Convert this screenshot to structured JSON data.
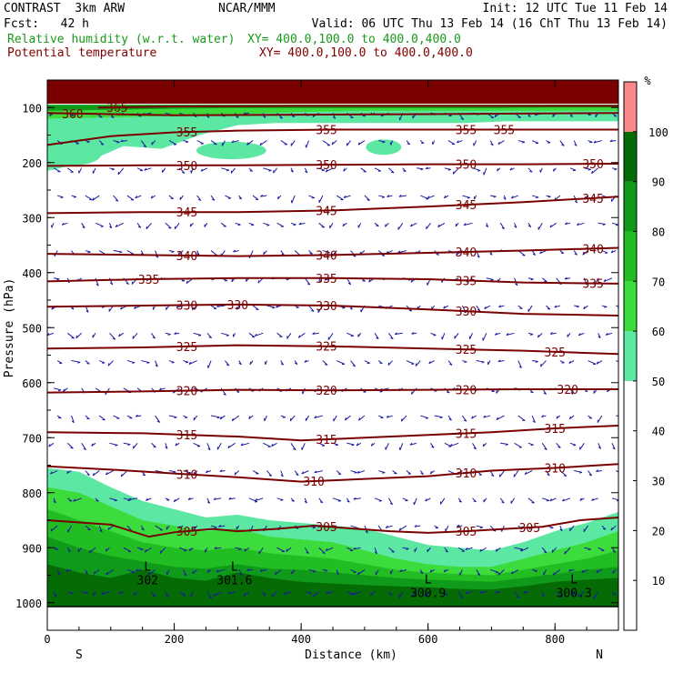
{
  "header": {
    "left_line1": "CONTRAST  3km ARW",
    "center_line1": "NCAR/MMM",
    "right_line1": "Init: 12 UTC Tue 11 Feb 14",
    "left_line2": "Fcst:   42 h",
    "right_line2": "Valid: 06 UTC Thu 13 Feb 14 (16 ChT Thu 13 Feb 14)",
    "field1_name": "Relative humidity (w.r.t. water)",
    "field1_xy": "XY= 400.0,100.0 to 400.0,400.0",
    "field2_name": "Potential temperature",
    "field2_xy": "XY= 400.0,100.0 to 400.0,400.0"
  },
  "colors": {
    "rh_fill": [
      "#ffffff",
      "#ffffff",
      "#ffffff",
      "#ffffff",
      "#ffffff",
      "#5ce8a2",
      "#3cdc3c",
      "#22bd22",
      "#0f9a1a",
      "#056b05",
      "#f88888"
    ],
    "theta_line": "#7a0000",
    "wind_arrow": "#1a1aa0",
    "top_band": "#7a0000"
  },
  "chart_data": {
    "type": "contour_cross_section",
    "xlabel": "Distance (km)",
    "ylabel": "Pressure (hPa)",
    "xlim": [
      0,
      900
    ],
    "ylim": [
      1050,
      50
    ],
    "x_ticks": [
      "0",
      "200",
      "400",
      "600",
      "800"
    ],
    "x_tick_values": [
      0,
      200,
      400,
      600,
      800
    ],
    "y_ticks": [
      "100",
      "200",
      "300",
      "400",
      "500",
      "600",
      "700",
      "800",
      "900",
      "1000"
    ],
    "y_tick_values": [
      100,
      200,
      300,
      400,
      500,
      600,
      700,
      800,
      900,
      1000
    ],
    "x_end_labels": {
      "left": "S",
      "right": "N"
    },
    "colorbar": {
      "unit": "%",
      "ticks": [
        "10",
        "20",
        "30",
        "40",
        "50",
        "60",
        "70",
        "80",
        "90",
        "100"
      ],
      "tick_values": [
        10,
        20,
        30,
        40,
        50,
        60,
        70,
        80,
        90,
        100
      ],
      "range": [
        0,
        110
      ]
    },
    "theta_contours": [
      {
        "level": "305",
        "x": [
          0,
          100,
          160,
          200,
          260,
          300,
          360,
          420,
          480,
          540,
          600,
          660,
          720,
          780,
          840,
          900
        ],
        "p": [
          850,
          858,
          880,
          872,
          866,
          870,
          866,
          860,
          865,
          870,
          873,
          870,
          866,
          862,
          850,
          845
        ],
        "labels": [
          [
            220,
            "305"
          ],
          [
            440,
            "305"
          ],
          [
            660,
            "305"
          ],
          [
            760,
            "305"
          ]
        ]
      },
      {
        "level": "310",
        "x": [
          0,
          100,
          200,
          300,
          400,
          500,
          600,
          700,
          800,
          900
        ],
        "p": [
          752,
          758,
          765,
          772,
          780,
          775,
          770,
          760,
          755,
          748
        ],
        "labels": [
          [
            220,
            "310"
          ],
          [
            420,
            "310"
          ],
          [
            660,
            "310"
          ],
          [
            800,
            "310"
          ]
        ]
      },
      {
        "level": "315",
        "x": [
          0,
          150,
          300,
          400,
          500,
          600,
          700,
          800,
          900
        ],
        "p": [
          690,
          692,
          698,
          705,
          700,
          695,
          690,
          683,
          678
        ],
        "labels": [
          [
            220,
            "315"
          ],
          [
            440,
            "315"
          ],
          [
            660,
            "315"
          ],
          [
            800,
            "315"
          ]
        ]
      },
      {
        "level": "320",
        "x": [
          0,
          150,
          300,
          450,
          600,
          750,
          900
        ],
        "p": [
          618,
          616,
          613,
          614,
          613,
          612,
          612
        ],
        "labels": [
          [
            220,
            "320"
          ],
          [
            440,
            "320"
          ],
          [
            660,
            "320"
          ],
          [
            820,
            "320"
          ]
        ]
      },
      {
        "level": "325",
        "x": [
          0,
          150,
          300,
          450,
          600,
          750,
          900
        ],
        "p": [
          538,
          536,
          532,
          534,
          538,
          542,
          548
        ],
        "labels": [
          [
            220,
            "325"
          ],
          [
            440,
            "325"
          ],
          [
            660,
            "325"
          ],
          [
            800,
            "325"
          ]
        ]
      },
      {
        "level": "330",
        "x": [
          0,
          150,
          300,
          450,
          600,
          750,
          900
        ],
        "p": [
          462,
          460,
          458,
          460,
          467,
          475,
          478
        ],
        "labels": [
          [
            220,
            "330"
          ],
          [
            300,
            "330"
          ],
          [
            440,
            "330"
          ],
          [
            660,
            "330"
          ]
        ]
      },
      {
        "level": "335",
        "x": [
          0,
          150,
          300,
          450,
          600,
          750,
          900
        ],
        "p": [
          416,
          412,
          410,
          410,
          412,
          418,
          420
        ],
        "labels": [
          [
            160,
            "335"
          ],
          [
            440,
            "335"
          ],
          [
            660,
            "335"
          ],
          [
            860,
            "335"
          ]
        ]
      },
      {
        "level": "340",
        "x": [
          0,
          150,
          300,
          450,
          600,
          750,
          900
        ],
        "p": [
          366,
          368,
          370,
          368,
          364,
          360,
          355
        ],
        "labels": [
          [
            220,
            "340"
          ],
          [
            440,
            "340"
          ],
          [
            660,
            "340"
          ],
          [
            860,
            "340"
          ]
        ]
      },
      {
        "level": "345",
        "x": [
          0,
          150,
          300,
          450,
          600,
          750,
          900
        ],
        "p": [
          292,
          290,
          290,
          287,
          280,
          272,
          262
        ],
        "labels": [
          [
            220,
            "345"
          ],
          [
            440,
            "345"
          ],
          [
            660,
            "345"
          ],
          [
            860,
            "345"
          ]
        ]
      },
      {
        "level": "350",
        "x": [
          0,
          150,
          300,
          450,
          600,
          750,
          900
        ],
        "p": [
          206,
          205,
          205,
          204,
          203,
          203,
          202
        ],
        "labels": [
          [
            220,
            "350"
          ],
          [
            440,
            "350"
          ],
          [
            660,
            "350"
          ],
          [
            860,
            "350"
          ]
        ]
      },
      {
        "level": "355",
        "x": [
          0,
          100,
          200,
          300,
          450,
          600,
          750,
          900
        ],
        "p": [
          168,
          152,
          145,
          142,
          140,
          140,
          140,
          140
        ],
        "labels": [
          [
            220,
            "355"
          ],
          [
            440,
            "355"
          ],
          [
            660,
            "355"
          ],
          [
            720,
            "355"
          ]
        ]
      },
      {
        "level": "360",
        "x": [
          0,
          100,
          200,
          400,
          600,
          900
        ],
        "p": [
          110,
          112,
          114,
          113,
          112,
          110
        ],
        "labels": [
          [
            40,
            "360"
          ]
        ]
      },
      {
        "level": "365",
        "x": [
          80,
          200,
          400,
          600,
          900
        ],
        "p": [
          100,
          98,
          97,
          97,
          97
        ],
        "labels": [
          [
            110,
            "365"
          ]
        ]
      }
    ],
    "rh_regions": [
      {
        "level": 50,
        "x": [
          0,
          50,
          100,
          150,
          200,
          250,
          300,
          350,
          400,
          450,
          500,
          550,
          600,
          650,
          700,
          750,
          800,
          850,
          900
        ],
        "p": [
          755,
          762,
          790,
          815,
          830,
          845,
          840,
          850,
          855,
          860,
          865,
          880,
          895,
          900,
          905,
          890,
          870,
          855,
          835
        ]
      },
      {
        "level": 60,
        "x": [
          0,
          50,
          100,
          150,
          200,
          250,
          300,
          350,
          400,
          450,
          500,
          550,
          600,
          650,
          700,
          750,
          800,
          850,
          900
        ],
        "p": [
          790,
          800,
          825,
          850,
          860,
          870,
          865,
          880,
          885,
          890,
          905,
          920,
          930,
          935,
          935,
          920,
          905,
          890,
          870
        ]
      },
      {
        "level": 70,
        "x": [
          0,
          50,
          100,
          150,
          200,
          250,
          300,
          350,
          400,
          450,
          500,
          550,
          600,
          650,
          700,
          750,
          800,
          850,
          900
        ],
        "p": [
          830,
          850,
          870,
          890,
          900,
          905,
          900,
          910,
          915,
          920,
          930,
          940,
          945,
          948,
          950,
          940,
          930,
          920,
          905
        ]
      },
      {
        "level": 80,
        "x": [
          0,
          50,
          100,
          150,
          200,
          250,
          300,
          350,
          400,
          450,
          500,
          550,
          600,
          650,
          700,
          750,
          800,
          850,
          900
        ],
        "p": [
          880,
          900,
          915,
          925,
          935,
          938,
          930,
          938,
          940,
          945,
          950,
          955,
          958,
          960,
          962,
          955,
          948,
          940,
          935
        ]
      },
      {
        "level": 90,
        "x": [
          0,
          50,
          100,
          150,
          200,
          250,
          300,
          350,
          400,
          450,
          500,
          550,
          600,
          650,
          700,
          750,
          800,
          850,
          900
        ],
        "p": [
          930,
          945,
          955,
          940,
          955,
          960,
          945,
          955,
          962,
          965,
          968,
          970,
          972,
          975,
          976,
          970,
          962,
          958,
          955
        ]
      }
    ],
    "rh_upper_patches": [
      {
        "level": 50,
        "x": [
          0,
          60,
          120,
          180,
          240,
          300,
          360,
          420,
          480,
          540,
          600,
          660,
          720,
          780,
          840,
          900
        ],
        "p_top": [
          95,
          95,
          95,
          95,
          95,
          95,
          95,
          95,
          95,
          95,
          95,
          95,
          95,
          95,
          95,
          95
        ],
        "p_bot": [
          215,
          200,
          170,
          175,
          150,
          132,
          128,
          128,
          128,
          128,
          128,
          128,
          125,
          125,
          125,
          125
        ]
      },
      {
        "level": 60,
        "x": [
          0,
          100,
          200,
          300,
          400,
          500,
          600,
          700,
          800,
          900
        ],
        "p_top": [
          95,
          95,
          95,
          95,
          95,
          95,
          95,
          95,
          95,
          95
        ],
        "p_bot": [
          120,
          118,
          115,
          112,
          108,
          106,
          106,
          106,
          106,
          106
        ]
      },
      {
        "level": 80,
        "x": [
          0,
          100,
          200,
          300,
          400,
          500,
          600,
          700,
          800,
          900
        ],
        "p_top": [
          95,
          95,
          95,
          95,
          95,
          95,
          95,
          95,
          95,
          95
        ],
        "p_bot": [
          106,
          104,
          102,
          101,
          101,
          101,
          101,
          101,
          100,
          100
        ]
      }
    ],
    "rh_upper_blobs": [
      {
        "level": 50,
        "x": 290,
        "p": 178,
        "rx_km": 55,
        "ry_hpa": 16
      },
      {
        "level": 50,
        "x": 530,
        "p": 172,
        "rx_km": 28,
        "ry_hpa": 14
      },
      {
        "level": 50,
        "x": 40,
        "p": 185,
        "rx_km": 45,
        "ry_hpa": 20
      }
    ],
    "top_band": {
      "p_top": 50,
      "p_bot": 93
    },
    "low_labels": [
      {
        "x": 158,
        "p": 955,
        "text": "302",
        "mark": "L"
      },
      {
        "x": 295,
        "p": 955,
        "text": "301.6",
        "mark": "L"
      },
      {
        "x": 600,
        "p": 978,
        "text": "300.9",
        "mark": "L"
      },
      {
        "x": 830,
        "p": 978,
        "text": "300.3",
        "mark": "L"
      }
    ],
    "wind_field": {
      "x_spacing_km": 22,
      "p_levels": [
        110,
        160,
        210,
        260,
        310,
        360,
        410,
        460,
        510,
        560,
        610,
        660,
        710,
        760,
        810,
        860,
        900,
        940,
        980
      ],
      "u_mean": -0.5,
      "w_mean": 1
    }
  }
}
